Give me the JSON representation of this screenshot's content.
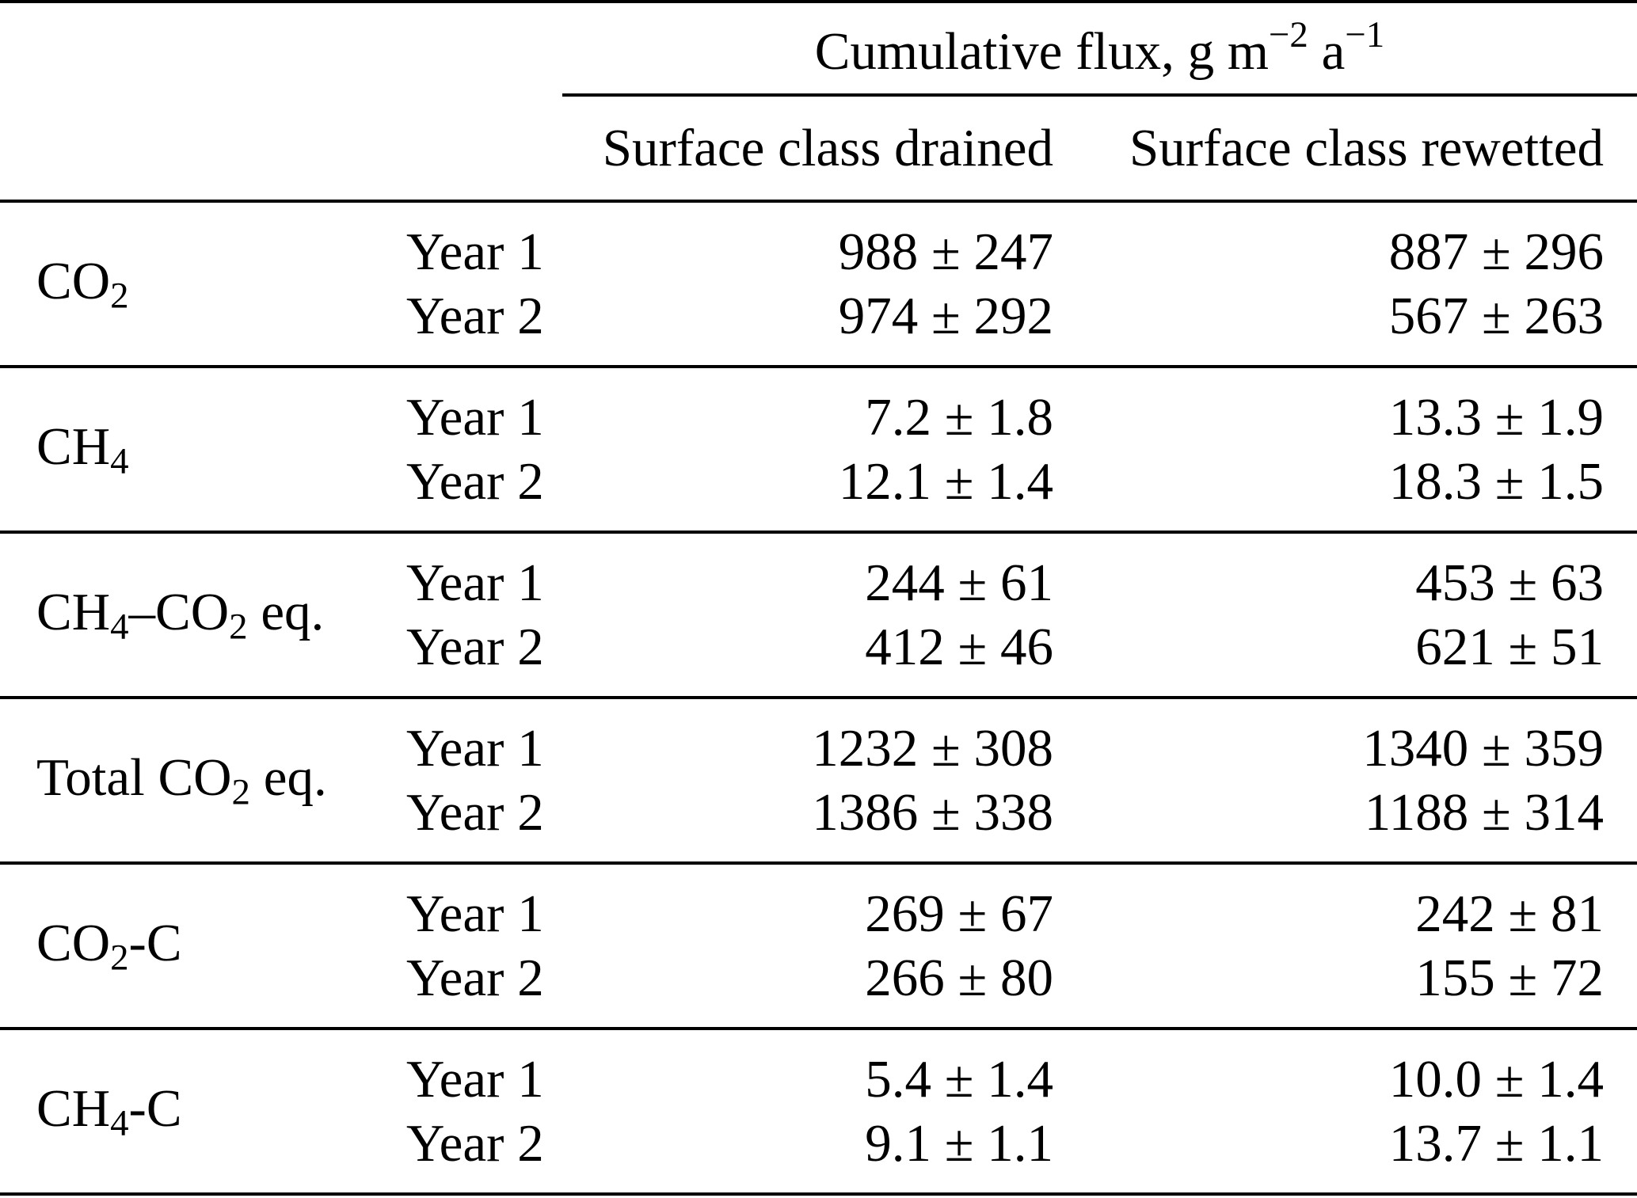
{
  "table": {
    "header": {
      "cumulative_flux": [
        {
          "t": "Cumulative flux, g m"
        },
        {
          "p": "−2"
        },
        {
          "t": " a"
        },
        {
          "p": "−1"
        }
      ],
      "col_drained": "Surface class drained",
      "col_rewetted": "Surface class rewetted"
    },
    "rows": [
      {
        "id": "co2",
        "label": [
          {
            "t": "CO"
          },
          {
            "s": "2"
          }
        ],
        "years": [
          {
            "year": "Year 1",
            "drained": "988 ± 247",
            "rewetted": "887 ± 296"
          },
          {
            "year": "Year 2",
            "drained": "974 ± 292",
            "rewetted": "567 ± 263"
          }
        ]
      },
      {
        "id": "ch4",
        "label": [
          {
            "t": "CH"
          },
          {
            "s": "4"
          }
        ],
        "years": [
          {
            "year": "Year 1",
            "drained": "7.2 ± 1.8",
            "rewetted": "13.3 ± 1.9"
          },
          {
            "year": "Year 2",
            "drained": "12.1 ± 1.4",
            "rewetted": "18.3 ± 1.5"
          }
        ]
      },
      {
        "id": "ch4-co2-eq",
        "label": [
          {
            "t": "CH"
          },
          {
            "s": "4"
          },
          {
            "t": "–CO"
          },
          {
            "s": "2"
          },
          {
            "t": " eq."
          }
        ],
        "years": [
          {
            "year": "Year 1",
            "drained": "244 ± 61",
            "rewetted": "453 ± 63"
          },
          {
            "year": "Year 2",
            "drained": "412 ± 46",
            "rewetted": "621 ± 51"
          }
        ]
      },
      {
        "id": "total-co2-eq",
        "label": [
          {
            "t": "Total CO"
          },
          {
            "s": "2"
          },
          {
            "t": " eq."
          }
        ],
        "years": [
          {
            "year": "Year 1",
            "drained": "1232 ± 308",
            "rewetted": "1340 ± 359"
          },
          {
            "year": "Year 2",
            "drained": "1386 ± 338",
            "rewetted": "1188 ± 314"
          }
        ]
      },
      {
        "id": "co2-c",
        "label": [
          {
            "t": "CO"
          },
          {
            "s": "2"
          },
          {
            "t": "-C"
          }
        ],
        "years": [
          {
            "year": "Year 1",
            "drained": "269 ± 67",
            "rewetted": "242 ± 81"
          },
          {
            "year": "Year 2",
            "drained": "266 ± 80",
            "rewetted": "155 ± 72"
          }
        ]
      },
      {
        "id": "ch4-c",
        "label": [
          {
            "t": "CH"
          },
          {
            "s": "4"
          },
          {
            "t": "-C"
          }
        ],
        "years": [
          {
            "year": "Year 1",
            "drained": "5.4 ± 1.4",
            "rewetted": "10.0 ± 1.4"
          },
          {
            "year": "Year 2",
            "drained": "9.1 ± 1.1",
            "rewetted": "13.7 ± 1.1"
          }
        ]
      }
    ]
  },
  "chart_data": {
    "type": "table",
    "title": "Cumulative flux, g m−2 a−1",
    "columns": [
      "Gas",
      "Year",
      "Surface class drained",
      "Surface class rewetted"
    ],
    "rows": [
      [
        "CO2",
        "Year 1",
        "988 ± 247",
        "887 ± 296"
      ],
      [
        "CO2",
        "Year 2",
        "974 ± 292",
        "567 ± 263"
      ],
      [
        "CH4",
        "Year 1",
        "7.2 ± 1.8",
        "13.3 ± 1.9"
      ],
      [
        "CH4",
        "Year 2",
        "12.1 ± 1.4",
        "18.3 ± 1.5"
      ],
      [
        "CH4–CO2 eq.",
        "Year 1",
        "244 ± 61",
        "453 ± 63"
      ],
      [
        "CH4–CO2 eq.",
        "Year 2",
        "412 ± 46",
        "621 ± 51"
      ],
      [
        "Total CO2 eq.",
        "Year 1",
        "1232 ± 308",
        "1340 ± 359"
      ],
      [
        "Total CO2 eq.",
        "Year 2",
        "1386 ± 338",
        "1188 ± 314"
      ],
      [
        "CO2-C",
        "Year 1",
        "269 ± 67",
        "242 ± 81"
      ],
      [
        "CO2-C",
        "Year 2",
        "266 ± 80",
        "155 ± 72"
      ],
      [
        "CH4-C",
        "Year 1",
        "5.4 ± 1.4",
        "10.0 ± 1.4"
      ],
      [
        "CH4-C",
        "Year 2",
        "9.1 ± 1.1",
        "13.7 ± 1.1"
      ]
    ]
  }
}
